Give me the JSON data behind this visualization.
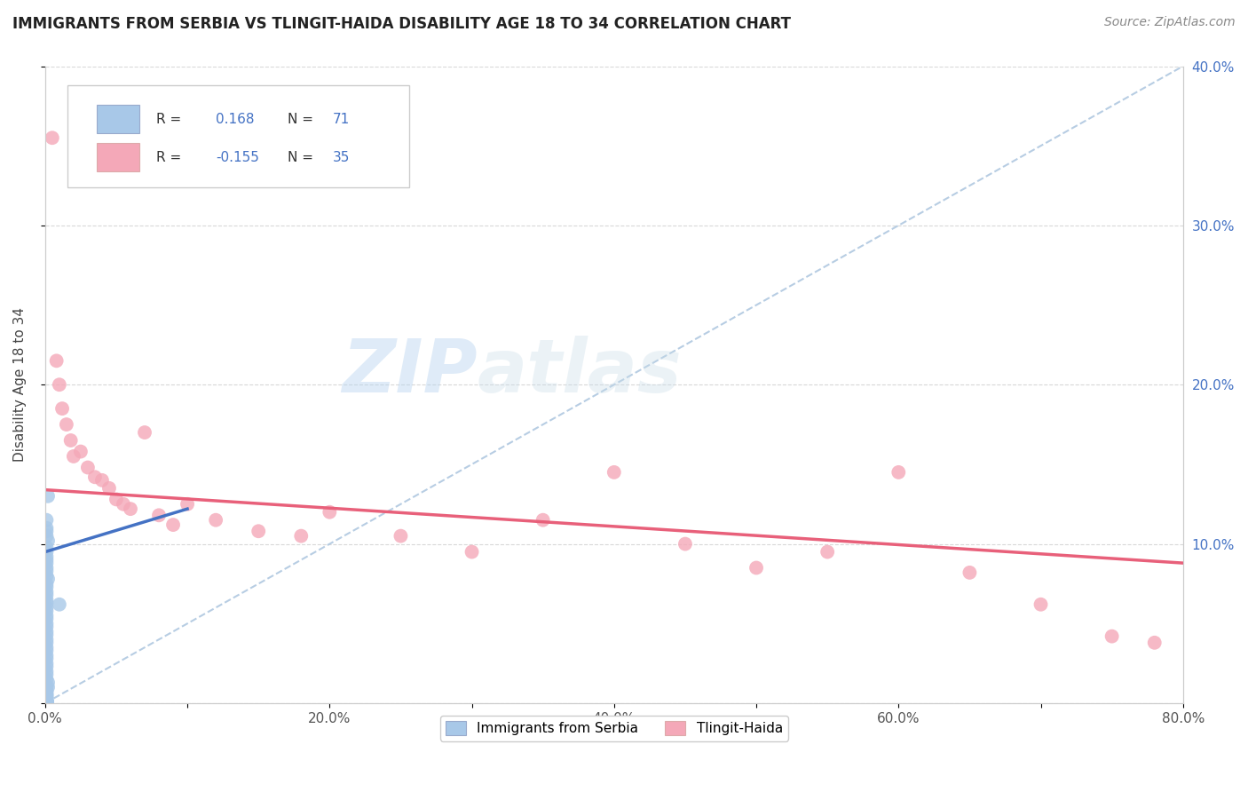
{
  "title": "IMMIGRANTS FROM SERBIA VS TLINGIT-HAIDA DISABILITY AGE 18 TO 34 CORRELATION CHART",
  "source": "Source: ZipAtlas.com",
  "ylabel": "Disability Age 18 to 34",
  "R_serbia": 0.168,
  "N_serbia": 71,
  "R_tlingit": -0.155,
  "N_tlingit": 35,
  "xlim": [
    0.0,
    0.8
  ],
  "ylim": [
    0.0,
    0.4
  ],
  "xticks": [
    0.0,
    0.1,
    0.2,
    0.3,
    0.4,
    0.5,
    0.6,
    0.7,
    0.8
  ],
  "yticks": [
    0.0,
    0.1,
    0.2,
    0.3,
    0.4
  ],
  "ytick_labels": [
    "",
    "10.0%",
    "20.0%",
    "30.0%",
    "40.0%"
  ],
  "xtick_labels": [
    "0.0%",
    "",
    "20.0%",
    "",
    "40.0%",
    "",
    "60.0%",
    "",
    "80.0%"
  ],
  "serbia_color": "#a8c8e8",
  "tlingit_color": "#f4a8b8",
  "serbia_line_color": "#4472c4",
  "tlingit_line_color": "#e8607a",
  "diag_color": "#b0c8e0",
  "watermark_zip": "ZIP",
  "watermark_atlas": "atlas",
  "serbia_line_x": [
    0.0,
    0.1
  ],
  "serbia_line_y": [
    0.095,
    0.122
  ],
  "tlingit_line_x": [
    0.0,
    0.8
  ],
  "tlingit_line_y": [
    0.134,
    0.088
  ],
  "serbia_scatter_x": [
    0.002,
    0.001,
    0.001,
    0.001,
    0.001,
    0.002,
    0.001,
    0.001,
    0.001,
    0.001,
    0.001,
    0.001,
    0.001,
    0.001,
    0.002,
    0.001,
    0.001,
    0.001,
    0.001,
    0.001,
    0.001,
    0.001,
    0.001,
    0.001,
    0.001,
    0.001,
    0.001,
    0.001,
    0.001,
    0.001,
    0.001,
    0.001,
    0.001,
    0.001,
    0.001,
    0.001,
    0.001,
    0.001,
    0.001,
    0.001,
    0.002,
    0.001,
    0.001,
    0.002,
    0.001,
    0.001,
    0.001,
    0.001,
    0.001,
    0.001,
    0.001,
    0.001,
    0.001,
    0.001,
    0.001,
    0.001,
    0.001,
    0.001,
    0.001,
    0.001,
    0.001,
    0.001,
    0.001,
    0.001,
    0.001,
    0.001,
    0.001,
    0.001,
    0.01,
    0.001,
    0.001
  ],
  "serbia_scatter_y": [
    0.13,
    0.115,
    0.11,
    0.108,
    0.105,
    0.102,
    0.098,
    0.095,
    0.092,
    0.09,
    0.088,
    0.085,
    0.083,
    0.08,
    0.078,
    0.075,
    0.073,
    0.07,
    0.068,
    0.065,
    0.063,
    0.06,
    0.058,
    0.055,
    0.053,
    0.05,
    0.048,
    0.045,
    0.043,
    0.04,
    0.038,
    0.035,
    0.033,
    0.03,
    0.028,
    0.025,
    0.023,
    0.02,
    0.018,
    0.015,
    0.013,
    0.01,
    0.008,
    0.01,
    0.007,
    0.006,
    0.005,
    0.005,
    0.004,
    0.003,
    0.003,
    0.002,
    0.002,
    0.001,
    0.001,
    0.001,
    0.001,
    0.001,
    0.001,
    0.001,
    0.001,
    0.001,
    0.001,
    0.001,
    0.001,
    0.001,
    0.001,
    0.001,
    0.062,
    0.001,
    0.001
  ],
  "tlingit_scatter_x": [
    0.005,
    0.008,
    0.01,
    0.012,
    0.015,
    0.018,
    0.02,
    0.025,
    0.03,
    0.035,
    0.04,
    0.045,
    0.05,
    0.055,
    0.06,
    0.07,
    0.08,
    0.09,
    0.1,
    0.12,
    0.15,
    0.18,
    0.2,
    0.25,
    0.3,
    0.35,
    0.4,
    0.45,
    0.5,
    0.55,
    0.6,
    0.65,
    0.7,
    0.75,
    0.78
  ],
  "tlingit_scatter_y": [
    0.355,
    0.215,
    0.2,
    0.185,
    0.175,
    0.165,
    0.155,
    0.158,
    0.148,
    0.142,
    0.14,
    0.135,
    0.128,
    0.125,
    0.122,
    0.17,
    0.118,
    0.112,
    0.125,
    0.115,
    0.108,
    0.105,
    0.12,
    0.105,
    0.095,
    0.115,
    0.145,
    0.1,
    0.085,
    0.095,
    0.145,
    0.082,
    0.062,
    0.042,
    0.038
  ]
}
